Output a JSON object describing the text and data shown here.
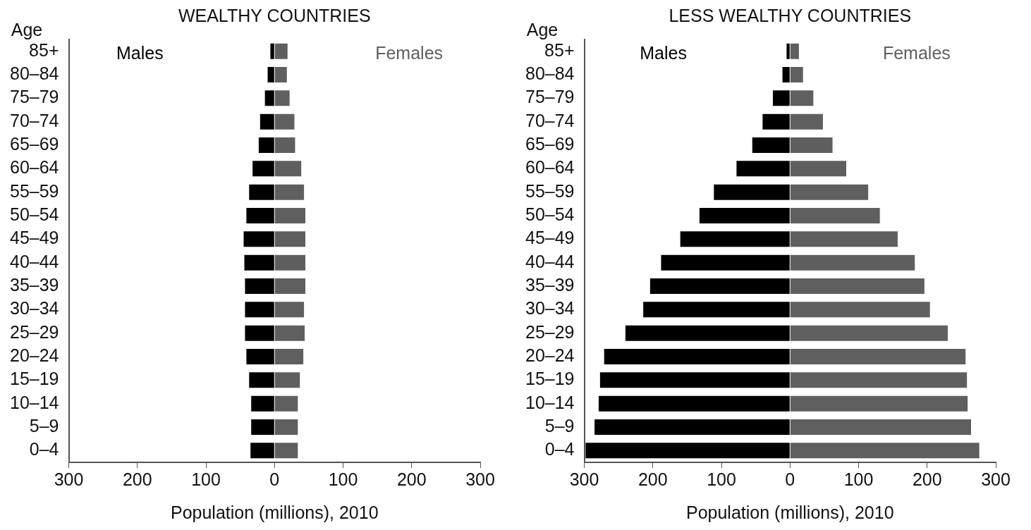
{
  "chart_data": [
    {
      "type": "bar",
      "title": "WEALTHY COUNTRIES",
      "xlabel": "Population (millions), 2010",
      "ylabel": "Age",
      "orientation": "horizontal",
      "stacked": true,
      "legend": false,
      "grid": false,
      "categories": [
        "85+",
        "80–84",
        "75–79",
        "70–74",
        "65–69",
        "60–64",
        "55–59",
        "50–54",
        "45–49",
        "40–44",
        "35–39",
        "30–34",
        "25–29",
        "20–24",
        "15–19",
        "10–14",
        "5–9",
        "0–4"
      ],
      "series": [
        {
          "name": "Males",
          "color": "#000000",
          "values": [
            -6,
            -10,
            -14,
            -21,
            -23,
            -32,
            -37,
            -41,
            -45,
            -44,
            -43,
            -43,
            -43,
            -41,
            -37,
            -34,
            -34,
            -35
          ]
        },
        {
          "name": "Females",
          "color": "#5f5f5f",
          "values": [
            19,
            18,
            22,
            29,
            30,
            39,
            43,
            45,
            45,
            45,
            45,
            43,
            44,
            42,
            37,
            34,
            34,
            34
          ]
        }
      ],
      "xlim": [
        -300,
        300
      ],
      "xticks": [
        {
          "value": -300,
          "label": "300"
        },
        {
          "value": -200,
          "label": "200"
        },
        {
          "value": -100,
          "label": "100"
        },
        0,
        100,
        200,
        300
      ]
    },
    {
      "type": "bar",
      "title": "LESS WEALTHY COUNTRIES",
      "xlabel": "Population (millions), 2010",
      "ylabel": "Age",
      "orientation": "horizontal",
      "stacked": true,
      "legend": false,
      "grid": false,
      "categories": [
        "85+",
        "80–84",
        "75–79",
        "70–74",
        "65–69",
        "60–64",
        "55–59",
        "50–54",
        "45–49",
        "40–44",
        "35–39",
        "30–34",
        "25–29",
        "20–24",
        "15–19",
        "10–14",
        "5–9",
        "0–4"
      ],
      "series": [
        {
          "name": "Males",
          "color": "#000000",
          "values": [
            -5,
            -11,
            -25,
            -40,
            -55,
            -78,
            -111,
            -132,
            -160,
            -188,
            -204,
            -214,
            -240,
            -271,
            -277,
            -279,
            -285,
            -298
          ]
        },
        {
          "name": "Females",
          "color": "#5f5f5f",
          "values": [
            13,
            19,
            34,
            48,
            62,
            82,
            114,
            131,
            157,
            182,
            196,
            204,
            230,
            256,
            258,
            259,
            264,
            276
          ]
        }
      ],
      "xlim": [
        -300,
        300
      ],
      "xticks": [
        {
          "value": -300,
          "label": "300"
        },
        {
          "value": -200,
          "label": "200"
        },
        {
          "value": -100,
          "label": "100"
        },
        0,
        100,
        200,
        300
      ]
    }
  ]
}
